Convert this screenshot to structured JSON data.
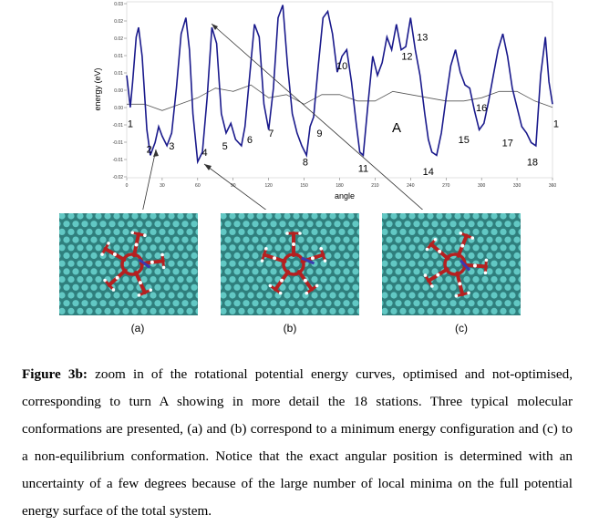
{
  "chart_data": {
    "type": "line",
    "xlabel": "angle",
    "ylabel": "energy (eV)",
    "xlim": [
      0,
      360
    ],
    "ylim": [
      -0.02,
      0.035
    ],
    "xticks": [
      "0",
      "30",
      "60",
      "90",
      "120",
      "150",
      "180",
      "210",
      "240",
      "270",
      "300",
      "330",
      "360"
    ],
    "yticks": [
      "0.03",
      "0.02",
      "0.02",
      "0.01",
      "0.01",
      "0.00",
      "0.00",
      "-0.01",
      "-0.01",
      "-0.01",
      "-0.02"
    ],
    "grid": false,
    "turn_label": "A",
    "series": [
      {
        "color": "#1a1a8c",
        "x": [
          0,
          3,
          5,
          8,
          10,
          13,
          17,
          20,
          24,
          27,
          30,
          34,
          38,
          42,
          46,
          50,
          53,
          56,
          60,
          64,
          68,
          72,
          76,
          80,
          84,
          88,
          92,
          97,
          100,
          104,
          108,
          112,
          116,
          120,
          124,
          128,
          132,
          136,
          140,
          144,
          148,
          152,
          155,
          158,
          162,
          166,
          170,
          174,
          178,
          182,
          186,
          190,
          194,
          197,
          200,
          204,
          208,
          212,
          216,
          220,
          224,
          228,
          232,
          236,
          240,
          244,
          248,
          252,
          255,
          258,
          262,
          266,
          270,
          274,
          278,
          282,
          286,
          290,
          294,
          298,
          302,
          306,
          310,
          314,
          318,
          322,
          326,
          330,
          334,
          338,
          342,
          346,
          350,
          354,
          357,
          360
        ],
        "y": [
          0.012,
          0.002,
          0.01,
          0.024,
          0.027,
          0.018,
          -0.005,
          -0.013,
          -0.009,
          -0.004,
          -0.007,
          -0.01,
          -0.006,
          0.008,
          0.025,
          0.03,
          0.02,
          0.0,
          -0.015,
          -0.012,
          0.005,
          0.027,
          0.022,
          0.0,
          -0.006,
          -0.003,
          -0.008,
          -0.01,
          -0.004,
          0.012,
          0.028,
          0.024,
          0.003,
          -0.005,
          0.008,
          0.03,
          0.034,
          0.015,
          0.0,
          -0.006,
          -0.01,
          -0.013,
          -0.004,
          -0.001,
          0.015,
          0.03,
          0.032,
          0.025,
          0.013,
          0.018,
          0.02,
          0.01,
          -0.003,
          -0.012,
          -0.013,
          0.003,
          0.018,
          0.012,
          0.016,
          0.024,
          0.02,
          0.028,
          0.02,
          0.021,
          0.03,
          0.02,
          0.012,
          0.0,
          -0.008,
          -0.012,
          -0.013,
          -0.006,
          0.005,
          0.015,
          0.02,
          0.013,
          0.009,
          0.008,
          0.001,
          -0.005,
          -0.003,
          0.004,
          0.012,
          0.02,
          0.025,
          0.018,
          0.008,
          0.002,
          -0.004,
          -0.006,
          -0.009,
          -0.01,
          0.012,
          0.024,
          0.01,
          0.003
        ]
      },
      {
        "color": "#555555",
        "x": [
          0,
          15,
          30,
          45,
          60,
          75,
          90,
          105,
          120,
          135,
          150,
          165,
          180,
          195,
          210,
          225,
          240,
          255,
          270,
          285,
          300,
          315,
          330,
          345,
          360
        ],
        "y": [
          0.003,
          0.003,
          0.001,
          0.003,
          0.005,
          0.008,
          0.007,
          0.009,
          0.005,
          0.006,
          0.003,
          0.006,
          0.006,
          0.004,
          0.004,
          0.007,
          0.006,
          0.005,
          0.004,
          0.004,
          0.005,
          0.007,
          0.007,
          0.004,
          0.002
        ]
      }
    ],
    "stations": [
      {
        "label": "1",
        "x": 3,
        "y": -0.003
      },
      {
        "label": "2",
        "x": 19,
        "y": -0.011
      },
      {
        "label": "3",
        "x": 38,
        "y": -0.01
      },
      {
        "label": "4",
        "x": 66,
        "y": -0.012
      },
      {
        "label": "5",
        "x": 83,
        "y": -0.01
      },
      {
        "label": "6",
        "x": 104,
        "y": -0.008
      },
      {
        "label": "7",
        "x": 122,
        "y": -0.006
      },
      {
        "label": "8",
        "x": 151,
        "y": -0.015
      },
      {
        "label": "9",
        "x": 163,
        "y": -0.006
      },
      {
        "label": "10",
        "x": 182,
        "y": 0.015
      },
      {
        "label": "11",
        "x": 200,
        "y": -0.017
      },
      {
        "label": "12",
        "x": 237,
        "y": 0.018
      },
      {
        "label": "13",
        "x": 250,
        "y": 0.024
      },
      {
        "label": "14",
        "x": 255,
        "y": -0.018
      },
      {
        "label": "15",
        "x": 285,
        "y": -0.008
      },
      {
        "label": "16",
        "x": 300,
        "y": 0.002
      },
      {
        "label": "17",
        "x": 322,
        "y": -0.009
      },
      {
        "label": "18",
        "x": 343,
        "y": -0.015
      },
      {
        "label": "1",
        "x": 363,
        "y": -0.003
      }
    ]
  },
  "panels": [
    {
      "label": "(a)"
    },
    {
      "label": "(b)"
    },
    {
      "label": "(c)"
    }
  ],
  "caption": {
    "title": "Figure 3b:",
    "text": " zoom in of the rotational potential energy curves, optimised and not-optimised, corresponding to turn A showing in more detail the 18 stations. Three typical molecular conformations are presented, (a) and (b) correspond to a minimum energy configuration and (c) to a non-equilibrium conformation. Notice that the exact angular position is determined with an uncertainty of a few degrees because of the large number of local minima on the full potential energy surface of the total system."
  },
  "colors": {
    "optimised_curve": "#1a1a8c",
    "non_optimised_curve": "#555555",
    "surface": "#2f7f7d",
    "atom": "#62c8c4",
    "molecule": "#b52020"
  }
}
